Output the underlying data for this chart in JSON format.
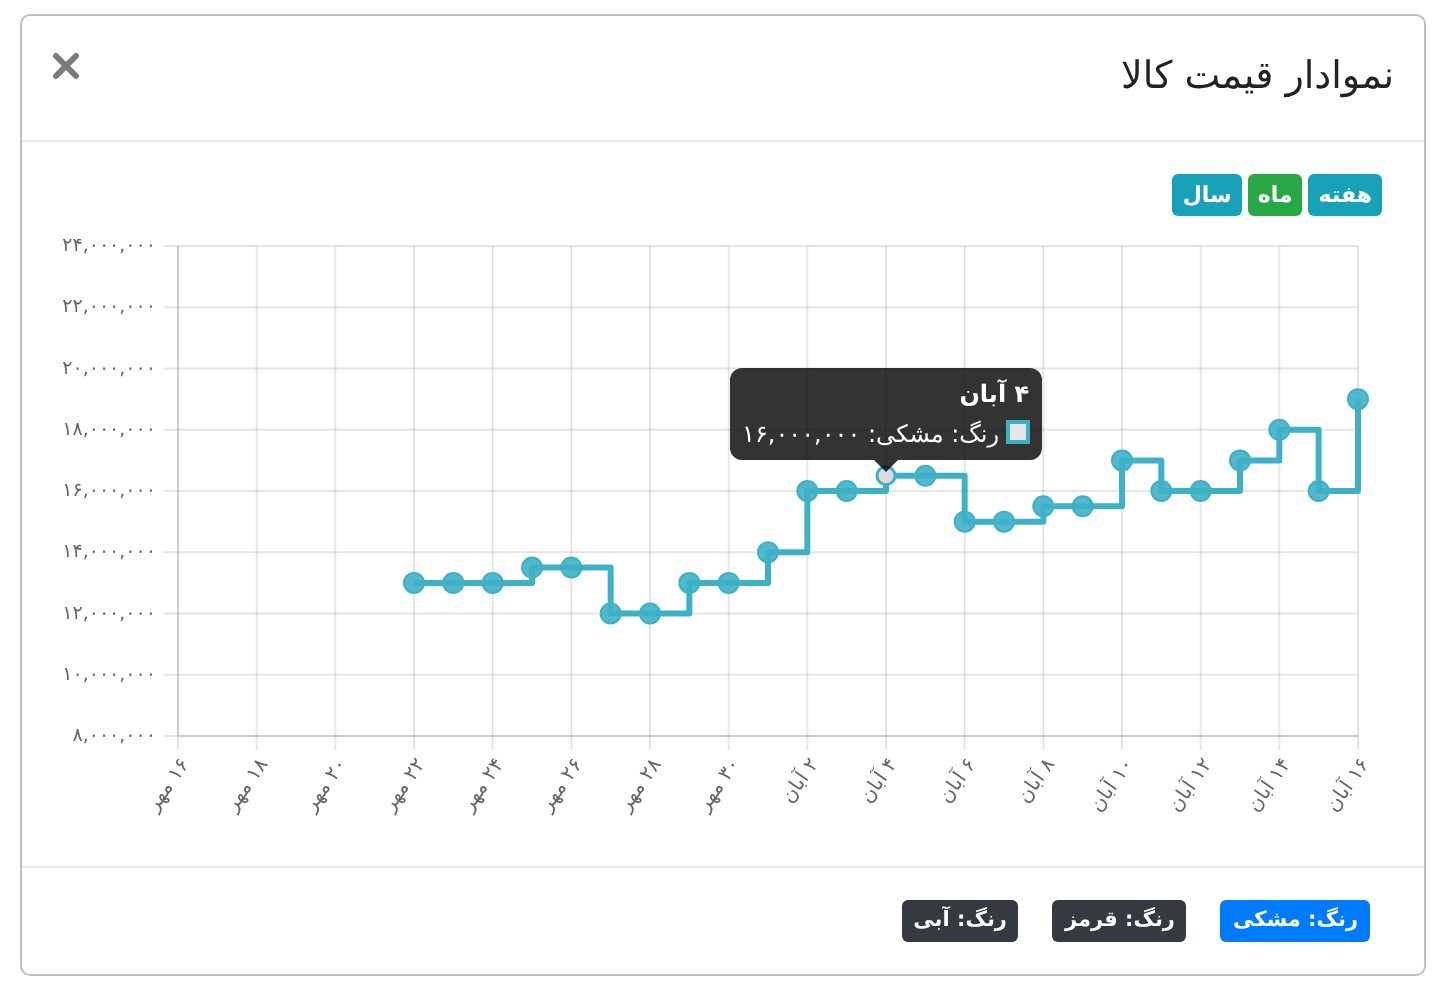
{
  "chart_data": {
    "type": "step",
    "title": "نموادار قیمت کالا",
    "categories": [
      "۱۶ مهر",
      null,
      "۱۸ مهر",
      null,
      "۲۰ مهر",
      null,
      "۲۲ مهر",
      null,
      "۲۴ مهر",
      null,
      "۲۶ مهر",
      null,
      "۲۸ مهر",
      null,
      "۳۰ مهر",
      null,
      "۲ آبان",
      null,
      "۴ آبان",
      null,
      "۶ آبان",
      null,
      "۸ آبان",
      null,
      "۱۰ آبان",
      null,
      "۱۲ آبان",
      null,
      "۱۴ آبان",
      null,
      "۱۶ آبان"
    ],
    "values": [
      null,
      null,
      null,
      null,
      null,
      null,
      13000000,
      13000000,
      13000000,
      13500000,
      13500000,
      12000000,
      12000000,
      13000000,
      13000000,
      14000000,
      16000000,
      16000000,
      16500000,
      16500000,
      15000000,
      15000000,
      15500000,
      15500000,
      17000000,
      16000000,
      16000000,
      17000000,
      18000000,
      16000000,
      19000000
    ],
    "color": "#3fb1c6",
    "marker": "circle",
    "line_style": "solid",
    "grid": true,
    "ylim": [
      8000000,
      24000000
    ],
    "yticks": [
      {
        "value": 8000000,
        "label": "۸,۰۰۰,۰۰۰"
      },
      {
        "value": 10000000,
        "label": "۱۰,۰۰۰,۰۰۰"
      },
      {
        "value": 12000000,
        "label": "۱۲,۰۰۰,۰۰۰"
      },
      {
        "value": 14000000,
        "label": "۱۴,۰۰۰,۰۰۰"
      },
      {
        "value": 16000000,
        "label": "۱۶,۰۰۰,۰۰۰"
      },
      {
        "value": 18000000,
        "label": "۱۸,۰۰۰,۰۰۰"
      },
      {
        "value": 20000000,
        "label": "۲۰,۰۰۰,۰۰۰"
      },
      {
        "value": 22000000,
        "label": "۲۲,۰۰۰,۰۰۰"
      },
      {
        "value": 24000000,
        "label": "۲۴,۰۰۰,۰۰۰"
      }
    ],
    "annotations": [
      "هفته",
      "ماه",
      "سال",
      "رنگ: مشکی",
      "رنگ: قرمز",
      "رنگ: آبی",
      "۴ آبان",
      "رنگ: مشکی: ۱۶,۰۰۰,۰۰۰"
    ]
  }
}
